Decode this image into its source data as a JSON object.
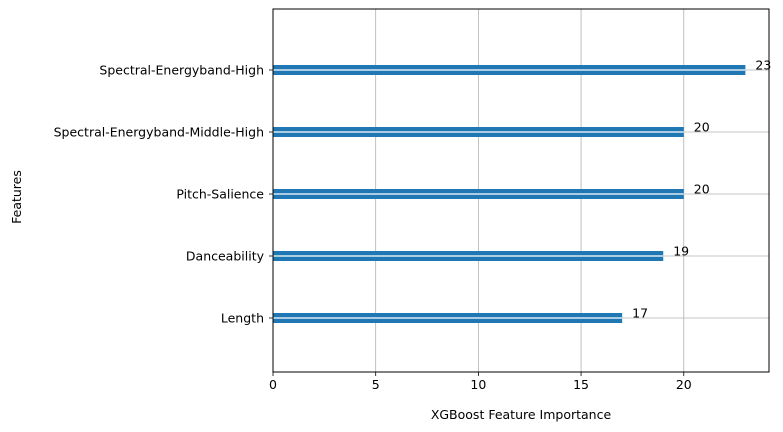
{
  "chart_data": {
    "type": "bar",
    "orientation": "horizontal",
    "categories": [
      "Length",
      "Danceability",
      "Pitch-Salience",
      "Spectral-Energyband-Middle-High",
      "Spectral-Energyband-High"
    ],
    "values": [
      17,
      19,
      20,
      20,
      23
    ],
    "data_labels": [
      "17",
      "19",
      "20",
      "20",
      "23"
    ],
    "title": "",
    "xlabel": "XGBoost Feature Importance",
    "ylabel": "Features",
    "xlim": [
      0,
      24.15
    ],
    "xticks": [
      0,
      5,
      10,
      15,
      20
    ],
    "xtick_labels": [
      "0",
      "5",
      "10",
      "15",
      "20"
    ],
    "grid": true,
    "bar_color": "#1f77b4",
    "grid_color": "#b0b0b0"
  }
}
